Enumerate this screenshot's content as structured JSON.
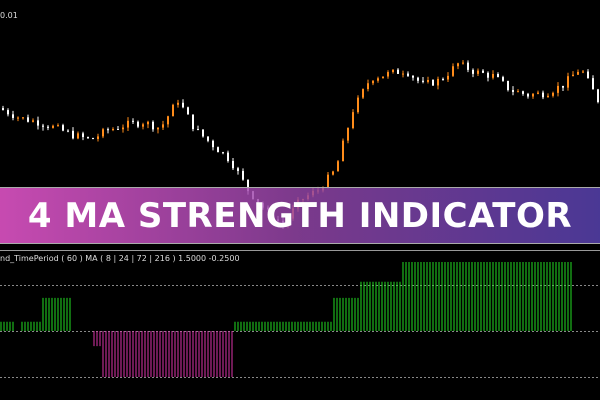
{
  "price_axis_label": "0.01",
  "banner_title": "4 MA STRENGTH INDICATOR",
  "indicator_header": "nd_TimePeriod ( 60 ) MA ( 8 | 24 | 72 | 216 )  1.5000 -0.2500",
  "colors": {
    "bull_candle": "#ff8c1a",
    "bear_candle": "#ffffff",
    "hist_up": "#22dd22",
    "hist_down": "#dd33aa",
    "level_line": "#888888"
  },
  "chart_data": [
    {
      "type": "candlestick",
      "anchor_closes": [
        190,
        182,
        178,
        172,
        165,
        160,
        170,
        175,
        178,
        172,
        200,
        170,
        155,
        140,
        110,
        90,
        75,
        100,
        110,
        130,
        190,
        222,
        226,
        230,
        215,
        220,
        236,
        228,
        224,
        210,
        205,
        207,
        215,
        232,
        200
      ],
      "grid": false
    },
    {
      "type": "bar",
      "levels": [
        1.0,
        0,
        -1.0
      ],
      "runs": [
        {
          "count": 5,
          "value": 0.2
        },
        {
          "count": 2,
          "value": 0
        },
        {
          "count": 7,
          "value": 0.2
        },
        {
          "count": 10,
          "value": 0.72
        },
        {
          "count": 7,
          "value": 0
        },
        {
          "count": 3,
          "value": -0.33
        },
        {
          "count": 44,
          "value": -1.0
        },
        {
          "count": 8,
          "value": 0.2
        },
        {
          "count": 25,
          "value": 0.2
        },
        {
          "count": 9,
          "value": 0.72
        },
        {
          "count": 14,
          "value": 1.07
        },
        {
          "count": 57,
          "value": 1.5
        }
      ]
    }
  ]
}
